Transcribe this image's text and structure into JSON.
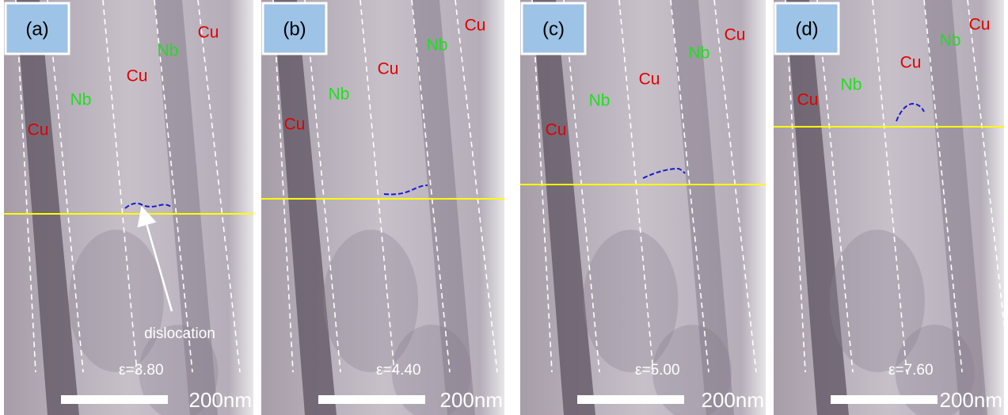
{
  "panels": [
    {
      "label": "(a)",
      "materials": [
        "Cu",
        "Nb",
        "Cu",
        "Nb",
        "Cu"
      ],
      "strain": "ε=3.80",
      "scale_bar": "200nm",
      "annotation": "dislocation"
    },
    {
      "label": "(b)",
      "materials": [
        "Cu",
        "Nb",
        "Cu",
        "Nb",
        "Cu"
      ],
      "strain": "ε=4.40",
      "scale_bar": "200nm"
    },
    {
      "label": "(c)",
      "materials": [
        "Cu",
        "Nb",
        "Cu",
        "Nb",
        "Cu"
      ],
      "strain": "ε=5.00",
      "scale_bar": "200nm"
    },
    {
      "label": "(d)",
      "materials": [
        "Cu",
        "Nb",
        "Cu",
        "Nb",
        "Cu"
      ],
      "strain": "ε=7.60",
      "scale_bar": "200nm"
    }
  ]
}
